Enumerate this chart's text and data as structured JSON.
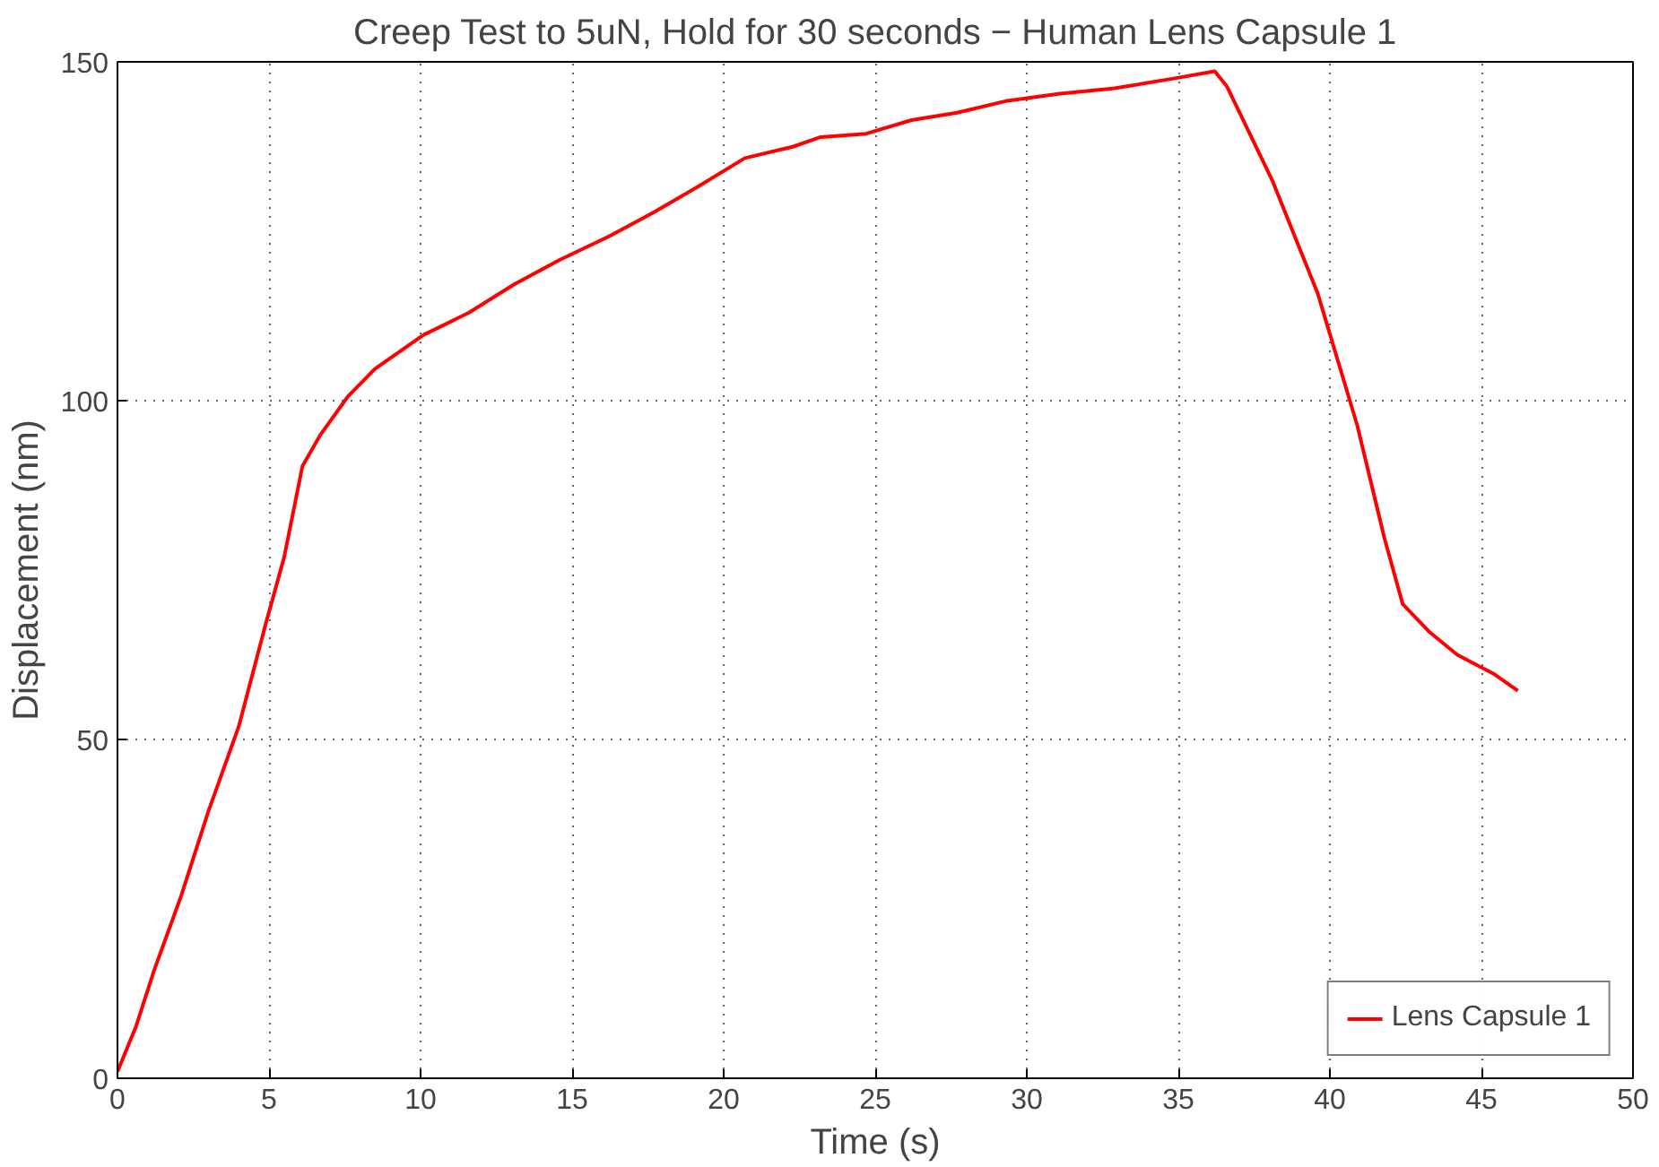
{
  "chart_data": {
    "type": "line",
    "title": "Creep Test to 5uN, Hold for 30 seconds − Human Lens Capsule 1",
    "xlabel": "Time (s)",
    "ylabel": "Displacement (nm)",
    "xlim": [
      0,
      50
    ],
    "xticks": [
      0,
      5,
      10,
      15,
      20,
      25,
      30,
      35,
      40,
      45,
      50
    ],
    "ylim": [
      0,
      150
    ],
    "yticks": [
      0,
      50,
      100,
      150
    ],
    "grid": true,
    "legend": "bottom right",
    "line_style": "solid",
    "marker": "none",
    "series": [
      {
        "name": "Lens Capsule 1",
        "color": "#ff0000",
        "x": [
          0,
          0.6,
          1.2,
          2.1,
          3.0,
          4.0,
          4.9,
          5.5,
          6.1,
          6.7,
          7.6,
          8.5,
          10.1,
          11.6,
          13.1,
          14.6,
          16.2,
          17.7,
          19.2,
          20.7,
          22.3,
          23.2,
          24.7,
          26.2,
          27.7,
          29.3,
          31.1,
          32.9,
          34.8,
          36.2,
          36.6,
          38.1,
          39.6,
          40.9,
          41.8,
          42.4,
          43.3,
          44.2,
          45.4,
          46.2
        ],
        "values": [
          1,
          7.5,
          15.8,
          26.9,
          39.4,
          51.9,
          67.2,
          76.9,
          90.3,
          95,
          100.6,
          104.7,
          109.7,
          113,
          117.2,
          120.8,
          124.2,
          127.8,
          131.7,
          135.8,
          137.5,
          138.9,
          139.4,
          141.4,
          142.5,
          144.2,
          145.3,
          146.1,
          147.5,
          148.6,
          146.4,
          132.5,
          115.8,
          96.4,
          79.7,
          70,
          65.8,
          62.5,
          59.7,
          57.2
        ]
      }
    ]
  }
}
